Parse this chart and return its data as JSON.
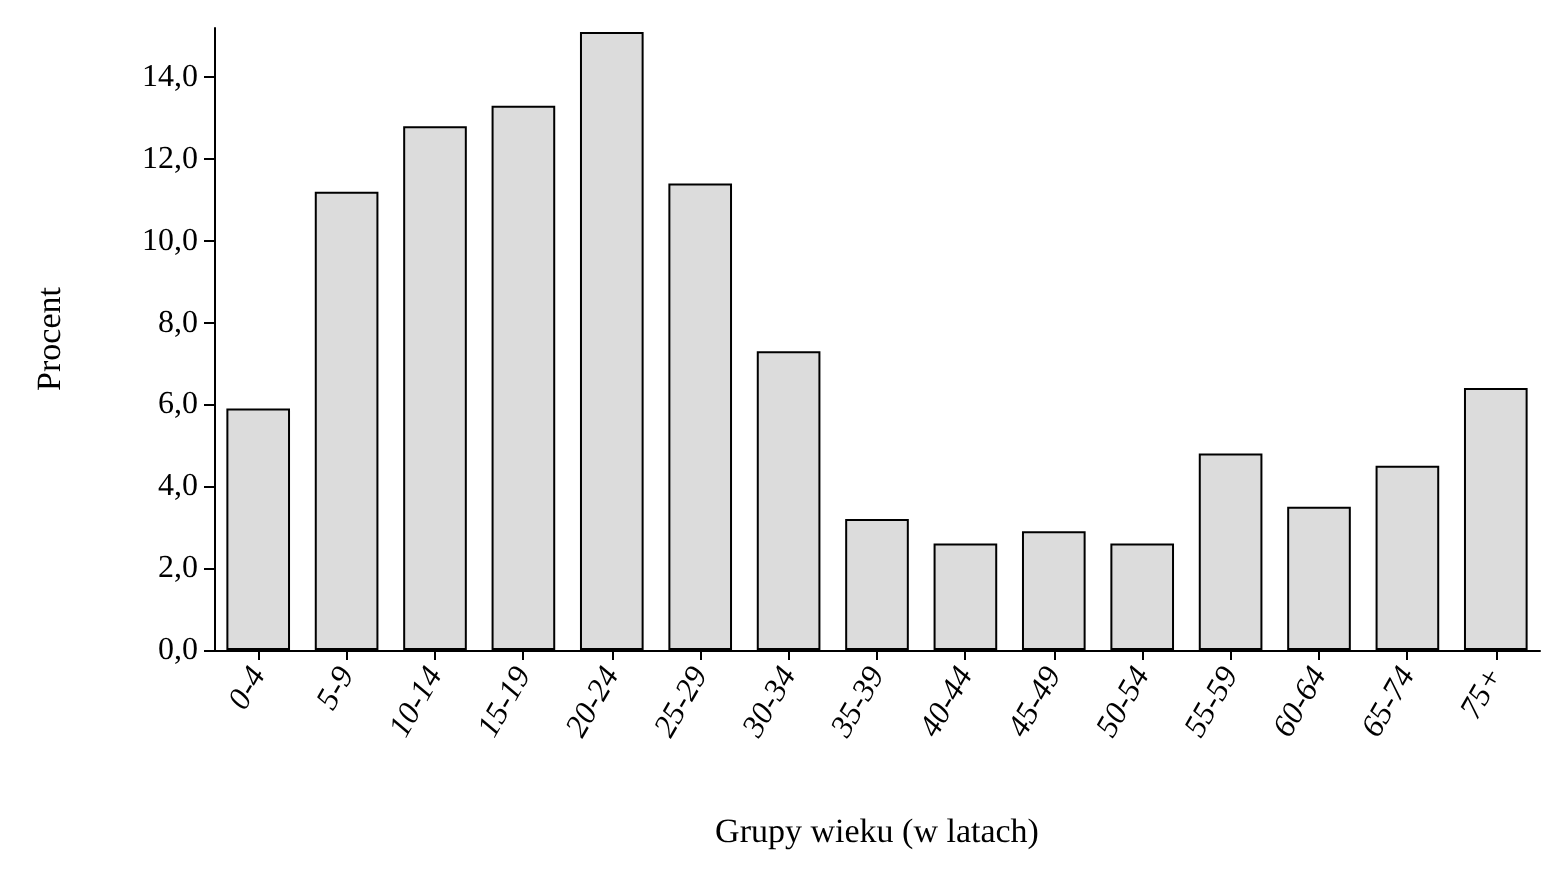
{
  "chart_data": {
    "type": "bar",
    "xlabel": "Grupy wieku (w latach)",
    "ylabel": "Procent",
    "categories": [
      "0-4",
      "5-9",
      "10-14",
      "15-19",
      "20-24",
      "25-29",
      "30-34",
      "35-39",
      "40-44",
      "45-49",
      "50-54",
      "55-59",
      "60-64",
      "65-74",
      "75+"
    ],
    "values": [
      5.9,
      11.2,
      12.8,
      13.3,
      15.1,
      11.4,
      7.3,
      3.2,
      2.6,
      2.9,
      2.6,
      4.8,
      3.5,
      4.5,
      6.4
    ],
    "color": "#dcdcdc",
    "ylim": [
      0,
      15.2
    ],
    "yticks": [
      {
        "value": 0,
        "label": "0,0"
      },
      {
        "value": 2,
        "label": "2,0"
      },
      {
        "value": 4,
        "label": "4,0"
      },
      {
        "value": 6,
        "label": "6,0"
      },
      {
        "value": 8,
        "label": "8,0"
      },
      {
        "value": 10,
        "label": "10,0"
      },
      {
        "value": 12,
        "label": "12,0"
      },
      {
        "value": 14,
        "label": "14,0"
      }
    ],
    "grid": false
  }
}
